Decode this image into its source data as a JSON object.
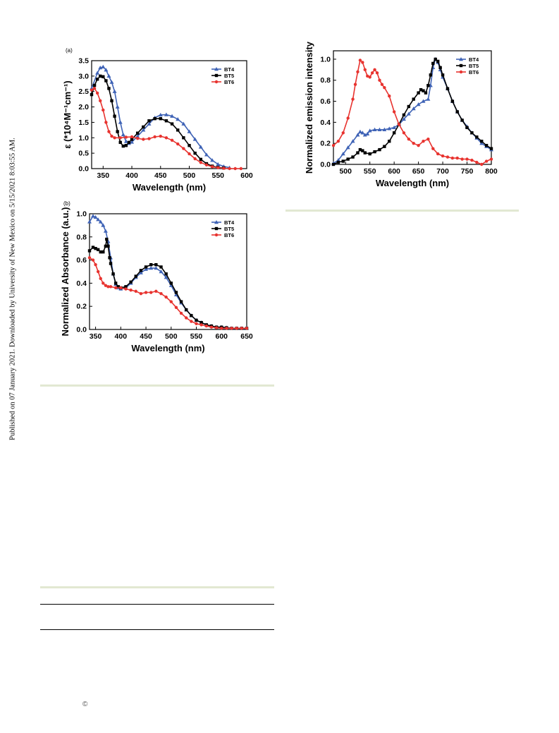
{
  "side_note": "Published on 07 January 2021. Downloaded by University of New Mexico on 5/15/2021 8:03:55 AM.",
  "copyright_symbol": "©",
  "series_colors": {
    "BT4": "#3f63b6",
    "BT5": "#000000",
    "BT6": "#e8332f"
  },
  "chart_data": [
    {
      "id": "a",
      "type": "line",
      "panel_label": "(a)",
      "xlabel": "Wavelength (nm)",
      "ylabel": "ε (*10⁴M⁻¹cm⁻¹)",
      "xlim": [
        330,
        600
      ],
      "ylim": [
        0,
        3.5
      ],
      "xticks": [
        350,
        400,
        450,
        500,
        550,
        600
      ],
      "yticks": [
        0.0,
        0.5,
        1.0,
        1.5,
        2.0,
        2.5,
        3.0,
        3.5
      ],
      "ytick_decimals": 1,
      "legend_position": "top-right",
      "series": [
        {
          "name": "BT4",
          "marker": "triangle",
          "x": [
            330,
            340,
            345,
            350,
            355,
            360,
            365,
            370,
            375,
            380,
            385,
            390,
            395,
            400,
            410,
            420,
            430,
            440,
            450,
            460,
            470,
            480,
            490,
            500,
            510,
            520,
            530,
            540,
            550,
            560,
            570
          ],
          "y": [
            2.6,
            3.1,
            3.27,
            3.3,
            3.2,
            3.0,
            2.8,
            2.5,
            2.0,
            1.5,
            1.1,
            0.88,
            0.82,
            0.86,
            1.05,
            1.25,
            1.45,
            1.65,
            1.74,
            1.75,
            1.7,
            1.6,
            1.45,
            1.2,
            0.95,
            0.7,
            0.45,
            0.27,
            0.14,
            0.07,
            0.03
          ]
        },
        {
          "name": "BT5",
          "marker": "square",
          "x": [
            330,
            335,
            340,
            345,
            350,
            355,
            360,
            365,
            370,
            375,
            380,
            385,
            390,
            395,
            400,
            410,
            420,
            430,
            440,
            450,
            460,
            470,
            480,
            490,
            500,
            510,
            520,
            530,
            540,
            550,
            560
          ],
          "y": [
            2.4,
            2.7,
            2.9,
            3.0,
            2.98,
            2.85,
            2.6,
            2.2,
            1.7,
            1.2,
            0.85,
            0.73,
            0.75,
            0.85,
            0.95,
            1.15,
            1.35,
            1.55,
            1.62,
            1.62,
            1.55,
            1.45,
            1.25,
            1.0,
            0.75,
            0.5,
            0.3,
            0.16,
            0.08,
            0.04,
            0.02
          ]
        },
        {
          "name": "BT6",
          "marker": "circle",
          "x": [
            330,
            335,
            340,
            345,
            350,
            355,
            360,
            365,
            370,
            380,
            390,
            400,
            410,
            420,
            430,
            440,
            450,
            460,
            470,
            480,
            490,
            500,
            510,
            520,
            530,
            540,
            550,
            560,
            570,
            580,
            590
          ],
          "y": [
            2.55,
            2.6,
            2.45,
            2.2,
            1.9,
            1.5,
            1.2,
            1.05,
            1.0,
            1.0,
            1.02,
            1.03,
            0.98,
            0.95,
            0.97,
            1.03,
            1.05,
            1.0,
            0.92,
            0.8,
            0.65,
            0.48,
            0.32,
            0.2,
            0.12,
            0.06,
            0.03,
            0.01,
            0.0,
            0.0,
            0.0
          ]
        }
      ]
    },
    {
      "id": "b",
      "type": "line",
      "panel_label": "(b)",
      "xlabel": "Wavelength (nm)",
      "ylabel": "Normalized Absorbance (a.u.)",
      "xlim": [
        338,
        650
      ],
      "ylim": [
        0,
        1.0
      ],
      "xticks": [
        350,
        400,
        450,
        500,
        550,
        600,
        650
      ],
      "yticks": [
        0.0,
        0.2,
        0.4,
        0.6,
        0.8,
        1.0
      ],
      "ytick_decimals": 1,
      "legend_position": "top-right",
      "series": [
        {
          "name": "BT4",
          "marker": "triangle",
          "x": [
            338,
            345,
            350,
            355,
            360,
            365,
            370,
            375,
            380,
            385,
            390,
            395,
            400,
            410,
            420,
            430,
            440,
            450,
            460,
            470,
            480,
            490,
            500,
            510,
            520,
            530,
            540,
            550,
            560,
            570,
            580,
            590,
            600,
            610,
            620,
            630,
            640,
            650
          ],
          "y": [
            0.93,
            0.98,
            0.97,
            0.95,
            0.93,
            0.9,
            0.85,
            0.76,
            0.62,
            0.48,
            0.39,
            0.36,
            0.35,
            0.36,
            0.4,
            0.45,
            0.49,
            0.52,
            0.53,
            0.53,
            0.5,
            0.45,
            0.38,
            0.3,
            0.23,
            0.17,
            0.12,
            0.08,
            0.06,
            0.04,
            0.03,
            0.02,
            0.02,
            0.015,
            0.01,
            0.01,
            0.01,
            0.01
          ]
        },
        {
          "name": "BT5",
          "marker": "square",
          "x": [
            338,
            345,
            350,
            355,
            360,
            365,
            370,
            372,
            375,
            378,
            380,
            385,
            390,
            395,
            400,
            410,
            420,
            430,
            440,
            450,
            460,
            470,
            480,
            490,
            500,
            510,
            520,
            530,
            540,
            550,
            560,
            570,
            580,
            590,
            600,
            610,
            620,
            630,
            640,
            650
          ],
          "y": [
            0.68,
            0.71,
            0.7,
            0.69,
            0.67,
            0.67,
            0.72,
            0.78,
            0.72,
            0.62,
            0.57,
            0.48,
            0.4,
            0.37,
            0.36,
            0.37,
            0.41,
            0.46,
            0.51,
            0.54,
            0.56,
            0.56,
            0.54,
            0.48,
            0.4,
            0.32,
            0.24,
            0.17,
            0.12,
            0.08,
            0.06,
            0.04,
            0.03,
            0.02,
            0.02,
            0.015,
            0.01,
            0.01,
            0.01,
            0.01
          ]
        },
        {
          "name": "BT6",
          "marker": "circle",
          "x": [
            338,
            345,
            350,
            355,
            360,
            365,
            370,
            375,
            380,
            390,
            400,
            410,
            420,
            430,
            440,
            450,
            460,
            470,
            480,
            490,
            500,
            510,
            520,
            530,
            540,
            550,
            560,
            570,
            580,
            590,
            600,
            610,
            620,
            630,
            640,
            650
          ],
          "y": [
            0.62,
            0.6,
            0.56,
            0.5,
            0.44,
            0.4,
            0.38,
            0.37,
            0.37,
            0.36,
            0.36,
            0.35,
            0.34,
            0.33,
            0.31,
            0.32,
            0.32,
            0.33,
            0.31,
            0.28,
            0.24,
            0.19,
            0.14,
            0.1,
            0.07,
            0.05,
            0.04,
            0.03,
            0.02,
            0.015,
            0.01,
            0.01,
            0.01,
            0.01,
            0.01,
            0.01
          ]
        }
      ]
    },
    {
      "id": "c",
      "type": "line",
      "panel_label": "",
      "xlabel": "Wavelength (nm)",
      "ylabel": "Normalized emission intensity",
      "xlim": [
        475,
        800
      ],
      "ylim": [
        0,
        1.08
      ],
      "xticks": [
        500,
        550,
        600,
        650,
        700,
        750,
        800
      ],
      "yticks": [
        0.0,
        0.2,
        0.4,
        0.6,
        0.8,
        1.0
      ],
      "ytick_decimals": 1,
      "legend_position": "top-right",
      "series": [
        {
          "name": "BT4",
          "marker": "triangle",
          "x": [
            475,
            485,
            495,
            505,
            515,
            525,
            530,
            535,
            540,
            545,
            550,
            560,
            570,
            580,
            590,
            600,
            610,
            620,
            630,
            640,
            650,
            660,
            670,
            675,
            680,
            685,
            690,
            695,
            700,
            710,
            720,
            730,
            740,
            750,
            760,
            770,
            780,
            790,
            800
          ],
          "y": [
            0.01,
            0.04,
            0.1,
            0.16,
            0.22,
            0.28,
            0.31,
            0.3,
            0.28,
            0.29,
            0.32,
            0.33,
            0.33,
            0.33,
            0.34,
            0.35,
            0.38,
            0.43,
            0.48,
            0.53,
            0.57,
            0.6,
            0.62,
            0.75,
            0.92,
            1.0,
            0.97,
            0.9,
            0.83,
            0.72,
            0.6,
            0.5,
            0.42,
            0.36,
            0.3,
            0.25,
            0.2,
            0.17,
            0.14
          ]
        },
        {
          "name": "BT5",
          "marker": "square",
          "x": [
            475,
            485,
            495,
            505,
            515,
            525,
            530,
            535,
            540,
            550,
            560,
            570,
            580,
            590,
            600,
            610,
            620,
            630,
            640,
            650,
            655,
            660,
            665,
            670,
            675,
            680,
            685,
            690,
            695,
            700,
            710,
            720,
            730,
            740,
            750,
            760,
            770,
            780,
            790,
            800
          ],
          "y": [
            0.0,
            0.02,
            0.03,
            0.05,
            0.07,
            0.11,
            0.14,
            0.13,
            0.11,
            0.1,
            0.12,
            0.14,
            0.17,
            0.22,
            0.3,
            0.38,
            0.47,
            0.55,
            0.62,
            0.68,
            0.71,
            0.7,
            0.68,
            0.75,
            0.85,
            0.96,
            1.0,
            0.98,
            0.92,
            0.85,
            0.72,
            0.6,
            0.5,
            0.42,
            0.35,
            0.3,
            0.26,
            0.22,
            0.18,
            0.15
          ]
        },
        {
          "name": "BT6",
          "marker": "circle",
          "x": [
            475,
            485,
            495,
            505,
            515,
            520,
            525,
            530,
            535,
            540,
            545,
            550,
            555,
            560,
            565,
            570,
            575,
            580,
            590,
            600,
            610,
            620,
            630,
            640,
            650,
            660,
            670,
            680,
            690,
            700,
            710,
            720,
            730,
            740,
            750,
            760,
            770,
            780,
            790,
            800
          ],
          "y": [
            0.18,
            0.22,
            0.3,
            0.44,
            0.62,
            0.76,
            0.88,
            0.99,
            0.97,
            0.9,
            0.84,
            0.83,
            0.87,
            0.9,
            0.87,
            0.8,
            0.76,
            0.73,
            0.65,
            0.5,
            0.38,
            0.3,
            0.24,
            0.2,
            0.18,
            0.22,
            0.24,
            0.15,
            0.1,
            0.08,
            0.07,
            0.06,
            0.06,
            0.05,
            0.05,
            0.04,
            0.02,
            0.0,
            0.03,
            0.05
          ]
        }
      ]
    }
  ]
}
